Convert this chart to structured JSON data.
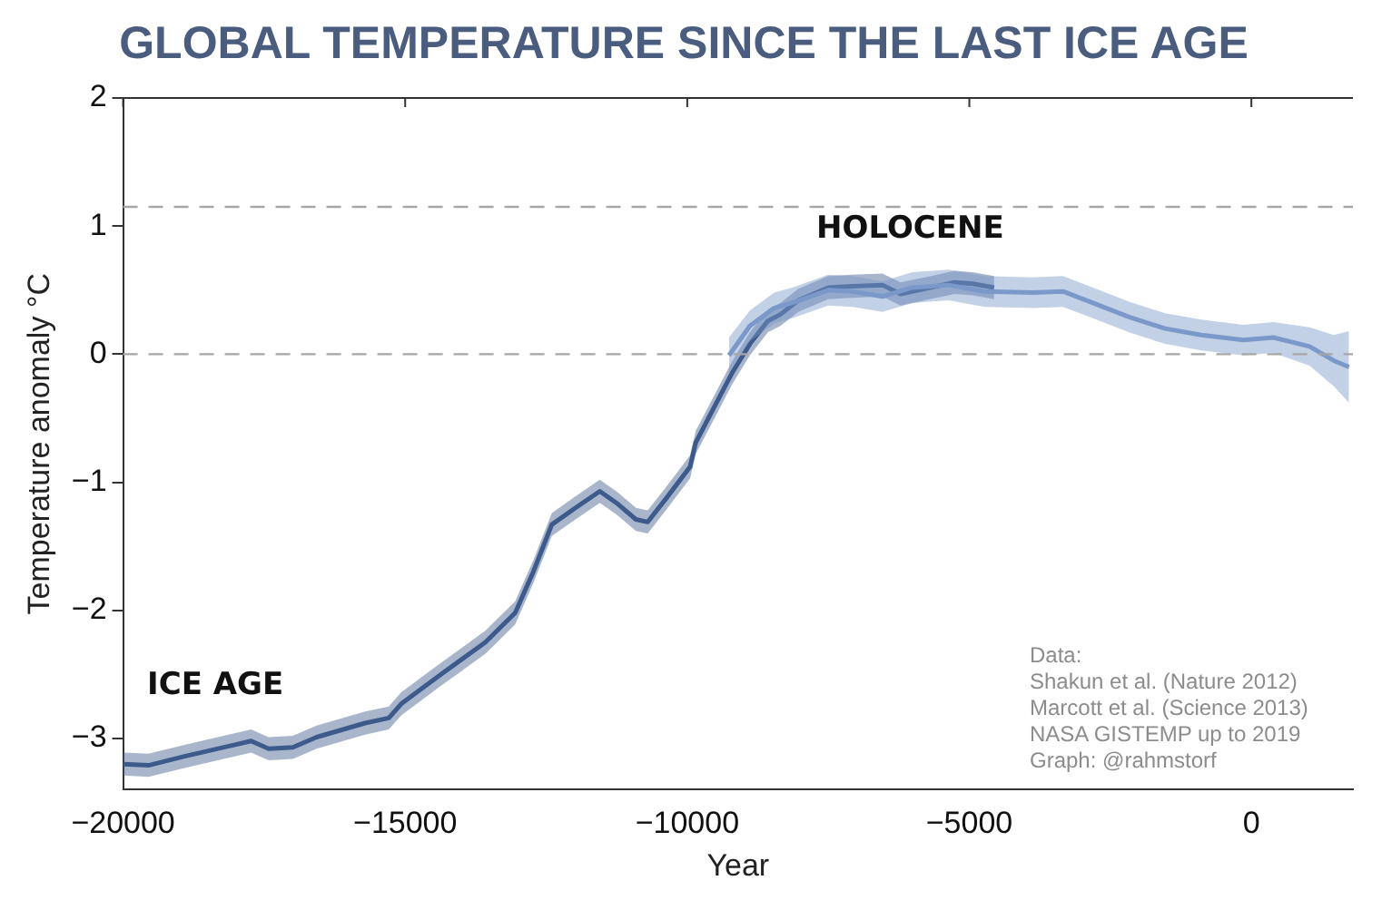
{
  "chart_data": {
    "type": "line",
    "title": "GLOBAL TEMPERATURE SINCE THE LAST ICE AGE",
    "xlabel": "Year",
    "ylabel": "Temperature anomaly °C",
    "xlim": [
      -20000,
      1800
    ],
    "xticks": [
      -20000,
      -15000,
      -10000,
      -5000,
      0
    ],
    "ylim": [
      -3.4,
      2
    ],
    "yticks": [
      -3,
      -2,
      -1,
      0,
      1,
      2
    ],
    "grid": false,
    "legend": false,
    "marker": "none",
    "line_style": "solid",
    "ref_lines": [
      {
        "axis": "y",
        "value": 0,
        "color": "#a6a6a6",
        "line_style": "dashed"
      },
      {
        "axis": "y",
        "value": 1.15,
        "color": "#a6a6a6",
        "line_style": "dashed"
      }
    ],
    "series": [
      {
        "color": "#7b98c9",
        "x": [
          -9260,
          -8890,
          -8460,
          -8140,
          -7500,
          -7070,
          -6540,
          -6010,
          -5370,
          -4730,
          -3870,
          -3340,
          -2810,
          -2170,
          -1530,
          -890,
          -140,
          390,
          1030,
          1460,
          1730
        ],
        "values": [
          -0.01,
          0.22,
          0.36,
          0.4,
          0.5,
          0.49,
          0.45,
          0.52,
          0.54,
          0.49,
          0.48,
          0.49,
          0.4,
          0.29,
          0.2,
          0.15,
          0.11,
          0.13,
          0.06,
          -0.05,
          -0.1
        ],
        "lower": [
          -0.15,
          0.1,
          0.24,
          0.28,
          0.38,
          0.37,
          0.33,
          0.4,
          0.42,
          0.37,
          0.36,
          0.37,
          0.28,
          0.17,
          0.08,
          0.03,
          -0.01,
          0.01,
          -0.09,
          -0.25,
          -0.38
        ],
        "upper": [
          0.13,
          0.34,
          0.48,
          0.52,
          0.62,
          0.61,
          0.57,
          0.64,
          0.66,
          0.61,
          0.6,
          0.61,
          0.52,
          0.41,
          0.32,
          0.27,
          0.23,
          0.25,
          0.21,
          0.15,
          0.18
        ]
      },
      {
        "color": "#3d5a8c",
        "x": [
          -20000,
          -19550,
          -18910,
          -17730,
          -17420,
          -16990,
          -16570,
          -15710,
          -15290,
          -15070,
          -14430,
          -13580,
          -13050,
          -12730,
          -12400,
          -11980,
          -11550,
          -11230,
          -10910,
          -10700,
          -10380,
          -9950,
          -9850,
          -9530,
          -9210,
          -8890,
          -8570,
          -8350,
          -8030,
          -7500,
          -7070,
          -6540,
          -6220,
          -5790,
          -5260,
          -4940,
          -4560
        ],
        "values": [
          -3.2,
          -3.21,
          -3.14,
          -3.02,
          -3.08,
          -3.07,
          -2.99,
          -2.88,
          -2.84,
          -2.73,
          -2.52,
          -2.25,
          -2.02,
          -1.7,
          -1.33,
          -1.2,
          -1.07,
          -1.17,
          -1.29,
          -1.31,
          -1.13,
          -0.88,
          -0.69,
          -0.42,
          -0.15,
          0.08,
          0.26,
          0.31,
          0.42,
          0.52,
          0.53,
          0.54,
          0.47,
          0.51,
          0.56,
          0.55,
          0.52
        ],
        "lower": [
          -3.29,
          -3.3,
          -3.23,
          -3.11,
          -3.17,
          -3.16,
          -3.08,
          -2.97,
          -2.93,
          -2.82,
          -2.61,
          -2.34,
          -2.11,
          -1.79,
          -1.42,
          -1.29,
          -1.16,
          -1.26,
          -1.38,
          -1.4,
          -1.22,
          -0.97,
          -0.78,
          -0.51,
          -0.24,
          -0.01,
          0.17,
          0.22,
          0.33,
          0.43,
          0.44,
          0.45,
          0.38,
          0.42,
          0.47,
          0.46,
          0.43
        ],
        "upper": [
          -3.11,
          -3.12,
          -3.05,
          -2.93,
          -2.99,
          -2.98,
          -2.9,
          -2.79,
          -2.75,
          -2.64,
          -2.43,
          -2.16,
          -1.93,
          -1.61,
          -1.24,
          -1.11,
          -0.98,
          -1.08,
          -1.2,
          -1.22,
          -1.04,
          -0.79,
          -0.6,
          -0.33,
          -0.06,
          0.17,
          0.35,
          0.4,
          0.51,
          0.61,
          0.62,
          0.63,
          0.56,
          0.6,
          0.65,
          0.64,
          0.61
        ]
      }
    ],
    "annotations": [
      "HOLOCENE",
      "ICE AGE",
      "Data:",
      "Shakun et al. (Nature 2012)",
      "Marcott et al. (Science 2013)",
      "NASA GISTEMP up to 2019",
      "Graph: @rahmstorf"
    ]
  }
}
